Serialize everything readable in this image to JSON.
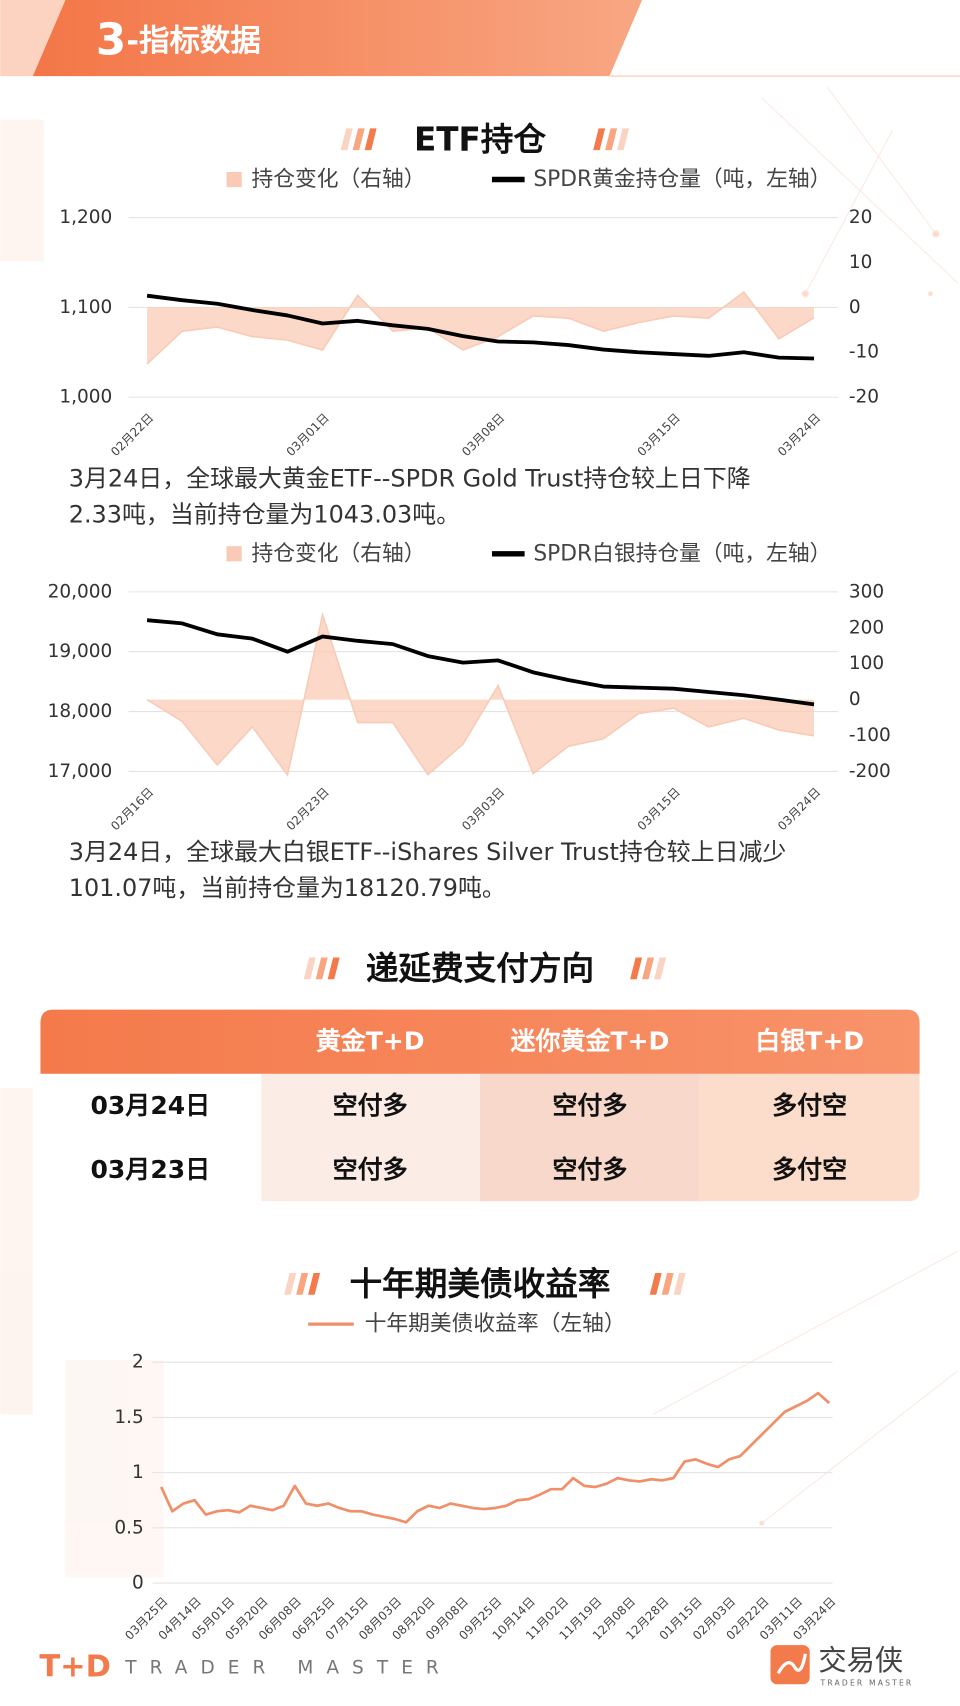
{
  "header": {
    "number": "3",
    "title": "-指标数据"
  },
  "etf_heading": "ETF持仓",
  "chart_data": [
    {
      "type": "line",
      "categories": [
        "02月22日",
        null,
        null,
        null,
        null,
        "03月01日",
        null,
        null,
        null,
        null,
        "03月08日",
        null,
        null,
        null,
        null,
        "03月15日",
        null,
        null,
        null,
        "03月24日"
      ],
      "series": [
        {
          "name": "持仓变化（右轴）",
          "type": "area",
          "axis": "y2",
          "color": "#f9cbb6",
          "values": [
            -12.6,
            -5.3,
            -4.4,
            -6.5,
            -7.3,
            -9.5,
            2.7,
            -5.3,
            -4.6,
            -9.5,
            -6.5,
            -1.9,
            -2.4,
            -5.3,
            -3.4,
            -1.9,
            -2.4,
            3.4,
            -7,
            -2.33
          ]
        },
        {
          "name": "SPDR黄金持仓量（吨，左轴）",
          "color": "#000000",
          "values": [
            1113,
            1108,
            1104,
            1097,
            1091,
            1082,
            1085,
            1080,
            1076,
            1068,
            1062,
            1061,
            1058,
            1053,
            1050,
            1048,
            1046,
            1050,
            1044,
            1043.03
          ]
        }
      ],
      "ylim": [
        1000,
        1200
      ],
      "yticks": [
        {
          "value": 1000,
          "label": "1,000"
        },
        {
          "value": 1100,
          "label": "1,100"
        },
        {
          "value": 1200,
          "label": "1,200"
        }
      ],
      "y2lim": [
        -20,
        20
      ],
      "y2ticks": [
        -20,
        -10,
        0,
        10,
        20
      ],
      "grid": true
    },
    {
      "type": "line",
      "categories": [
        "02月16日",
        null,
        null,
        null,
        null,
        "02月23日",
        null,
        null,
        null,
        null,
        "03月03日",
        null,
        null,
        null,
        null,
        "03月15日",
        null,
        null,
        null,
        "03月24日"
      ],
      "series": [
        {
          "name": "持仓变化（右轴）",
          "type": "area",
          "axis": "y2",
          "color": "#f9cbb6",
          "values": [
            0,
            -61,
            -182,
            -76,
            -210,
            236,
            -64,
            -64,
            -209,
            -124,
            39,
            -206,
            -130,
            -109,
            -39,
            -24,
            -76,
            -52,
            -85,
            -101.07
          ]
        },
        {
          "name": "SPDR白银持仓量（吨，左轴）",
          "color": "#000000",
          "values": [
            19527,
            19473,
            19291,
            19218,
            19000,
            19255,
            19182,
            19127,
            18927,
            18818,
            18855,
            18655,
            18527,
            18418,
            18400,
            18382,
            18327,
            18273,
            18200,
            18120.79
          ]
        }
      ],
      "ylim": [
        17000,
        20000
      ],
      "yticks": [
        {
          "value": 17000,
          "label": "17,000"
        },
        {
          "value": 18000,
          "label": "18,000"
        },
        {
          "value": 19000,
          "label": "19,000"
        },
        {
          "value": 20000,
          "label": "20,000"
        }
      ],
      "y2lim": [
        -200,
        300
      ],
      "y2ticks": [
        -200,
        -100,
        0,
        100,
        200,
        300
      ],
      "grid": true
    },
    {
      "type": "line",
      "title": "十年期美债收益率",
      "categories": [
        "03月25日",
        null,
        null,
        "04月14日",
        null,
        null,
        "05月01日",
        null,
        null,
        "05月20日",
        null,
        null,
        "06月08日",
        null,
        null,
        "06月25日",
        null,
        null,
        "07月15日",
        null,
        null,
        "08月03日",
        null,
        null,
        "08月20日",
        null,
        null,
        "09月08日",
        null,
        null,
        "09月25日",
        null,
        null,
        "10月14日",
        null,
        null,
        "11月02日",
        null,
        null,
        "11月19日",
        null,
        null,
        "12月08日",
        null,
        null,
        "12月28日",
        null,
        null,
        "01月15日",
        null,
        null,
        "02月03日",
        null,
        null,
        "02月22日",
        null,
        null,
        "03月11日",
        null,
        null,
        "03月24日"
      ],
      "series": [
        {
          "name": "十年期美债收益率（左轴）",
          "color": "#f0906a",
          "values": [
            0.87,
            0.65,
            0.72,
            0.75,
            0.62,
            0.65,
            0.66,
            0.64,
            0.7,
            0.68,
            0.66,
            0.7,
            0.88,
            0.72,
            0.7,
            0.72,
            0.68,
            0.65,
            0.65,
            0.62,
            0.6,
            0.58,
            0.55,
            0.65,
            0.7,
            0.68,
            0.72,
            0.7,
            0.68,
            0.67,
            0.68,
            0.7,
            0.75,
            0.76,
            0.8,
            0.85,
            0.85,
            0.95,
            0.88,
            0.87,
            0.9,
            0.95,
            0.93,
            0.92,
            0.94,
            0.93,
            0.95,
            1.1,
            1.12,
            1.08,
            1.05,
            1.12,
            1.15,
            1.25,
            1.35,
            1.45,
            1.55,
            1.6,
            1.65,
            1.72,
            1.63
          ]
        }
      ],
      "ylim": [
        0,
        2
      ],
      "yticks": [
        0,
        0.5,
        1,
        1.5,
        2
      ],
      "grid": true
    }
  ],
  "notes": [
    {
      "lines": [
        "3月24日，全球最大黄金ETF--SPDR Gold Trust持仓较上日下降",
        "2.33吨，当前持仓量为1043.03吨。"
      ]
    },
    {
      "lines": [
        "3月24日，全球最大白银ETF--iShares Silver Trust持仓较上日减少",
        "101.07吨，当前持仓量为18120.79吨。"
      ]
    }
  ],
  "carry": {
    "title": "递延费支付方向",
    "columns": [
      "黄金T+D",
      "迷你黄金T+D",
      "白银T+D"
    ],
    "rows": [
      [
        "03月24日",
        "空付多",
        "空付多",
        "多付空"
      ],
      [
        "03月23日",
        "空付多",
        "空付多",
        "多付空"
      ]
    ]
  },
  "footer": {
    "brand": "T+D",
    "tagline": "TRADER MASTER",
    "logo": "交易侠",
    "logo_sub": "TRADER MASTER"
  }
}
